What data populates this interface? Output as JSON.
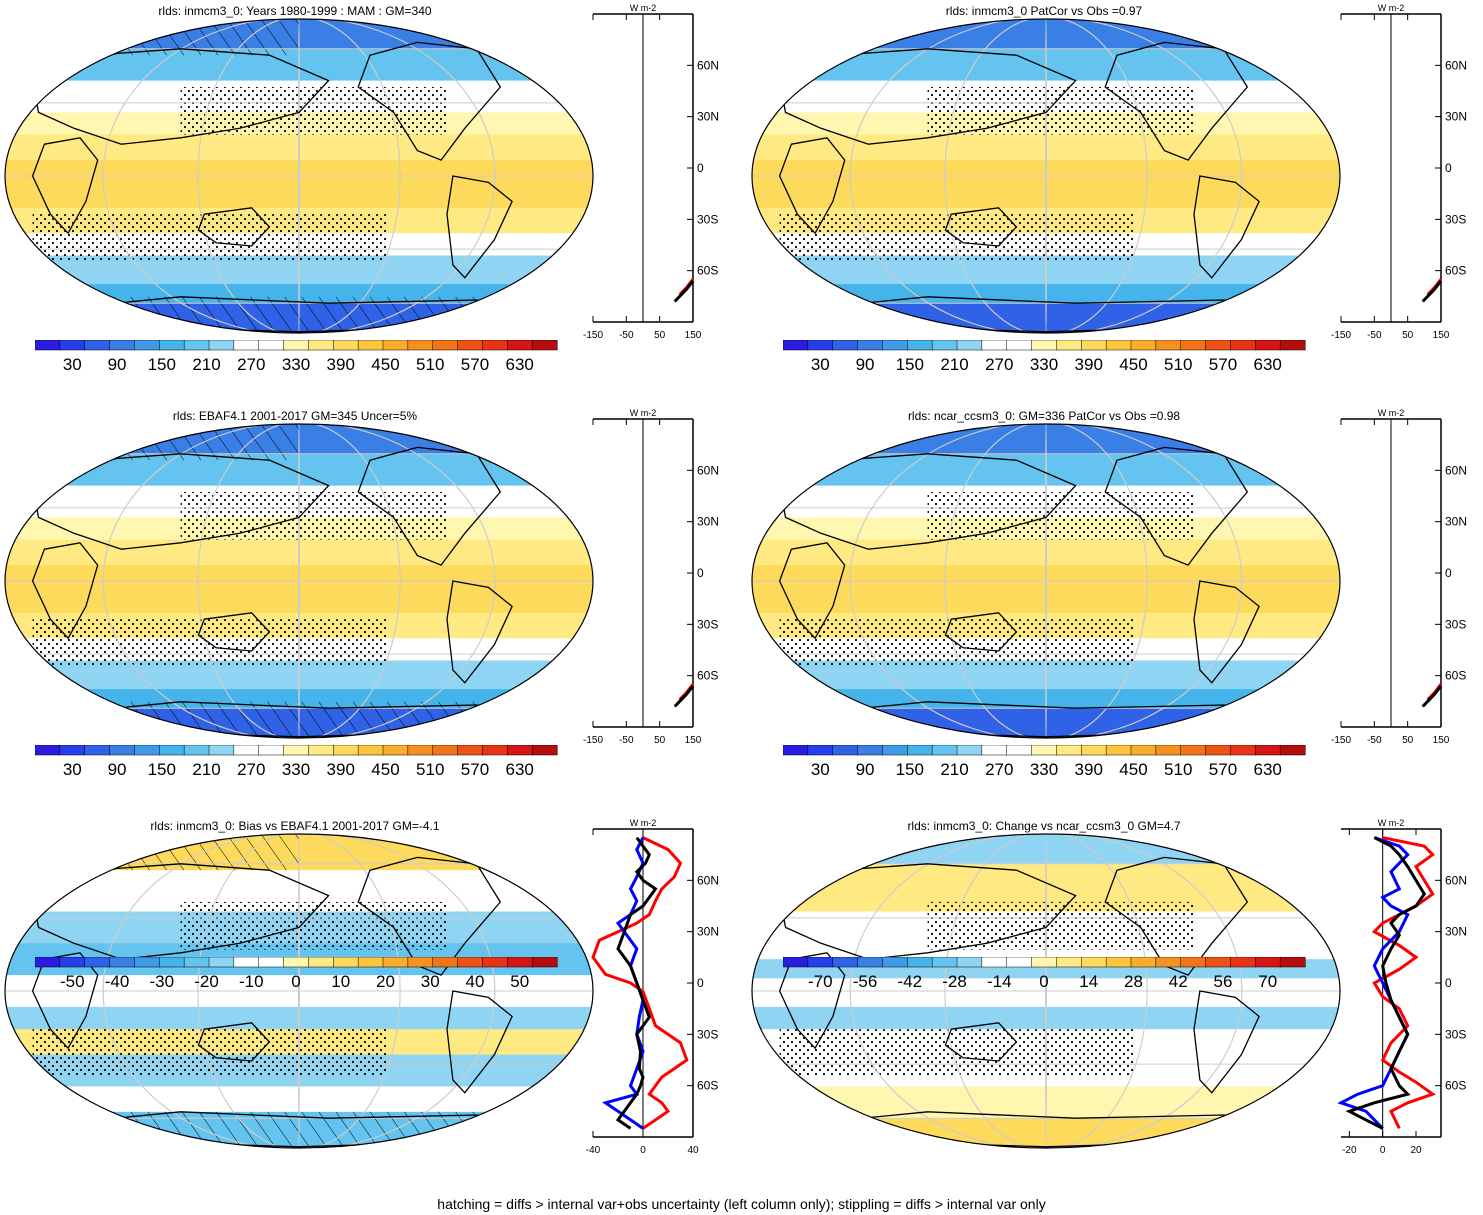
{
  "footer": "hatching = diffs > internal var+obs uncertainty (left column only); stippling = diffs > internal var only",
  "colors": {
    "abs_scale": [
      "#2b1de0",
      "#2540e8",
      "#2f62e6",
      "#3a7fe6",
      "#3f9be8",
      "#45b4ea",
      "#64c4ef",
      "#8fd4f3",
      "#ffffff",
      "#ffffff",
      "#fff6b0",
      "#fee983",
      "#fdda5c",
      "#fcc53c",
      "#f9ad2a",
      "#f6911f",
      "#f27419",
      "#ee5316",
      "#e83416",
      "#d61616",
      "#b50d0d"
    ],
    "diff_scale": [
      "#2b1de0",
      "#2540e8",
      "#2f62e6",
      "#3a7fe6",
      "#3f9be8",
      "#45b4ea",
      "#64c4ef",
      "#8fd4f3",
      "#ffffff",
      "#ffffff",
      "#fff6b0",
      "#fee983",
      "#fdda5c",
      "#fcc53c",
      "#f9ad2a",
      "#f6911f",
      "#f27419",
      "#ee5316",
      "#e83416",
      "#d61616",
      "#b50d0d"
    ]
  },
  "chart_data": [
    {
      "type": "heatmap",
      "id": "p1",
      "title": "rlds: inmcm3_0: Years 1980-1999 : MAM : GM=340",
      "colorbar_ticks": [
        "30",
        "90",
        "150",
        "210",
        "270",
        "330",
        "390",
        "450",
        "510",
        "570",
        "630"
      ],
      "zonal_xticks": [
        "-150",
        "-50",
        "50",
        "150"
      ],
      "zonal_xlim": [
        -150,
        150
      ],
      "zonal_unit": "W m-2",
      "lat_ticks": [
        "60N",
        "30N",
        "0",
        "30S",
        "60S"
      ],
      "zonal_series": [
        {
          "color": "#ff0000",
          "x": [
            150,
            130,
            110
          ],
          "y": [
            -65,
            -70,
            -74
          ]
        },
        {
          "color": "#000000",
          "x": [
            150,
            130,
            110,
            95
          ],
          "y": [
            -66,
            -71,
            -75,
            -78
          ]
        }
      ]
    },
    {
      "type": "heatmap",
      "id": "p2",
      "title": "rlds: inmcm3_0 PatCor vs Obs =0.97",
      "colorbar_ticks": [
        "30",
        "90",
        "150",
        "210",
        "270",
        "330",
        "390",
        "450",
        "510",
        "570",
        "630"
      ],
      "zonal_xticks": [
        "-150",
        "-50",
        "50",
        "150"
      ],
      "zonal_xlim": [
        -150,
        150
      ],
      "zonal_unit": "W m-2",
      "lat_ticks": [
        "60N",
        "30N",
        "0",
        "30S",
        "60S"
      ],
      "zonal_series": [
        {
          "color": "#ff0000",
          "x": [
            150,
            130,
            110
          ],
          "y": [
            -65,
            -70,
            -74
          ]
        },
        {
          "color": "#000000",
          "x": [
            150,
            130,
            110,
            95
          ],
          "y": [
            -66,
            -71,
            -75,
            -78
          ]
        }
      ]
    },
    {
      "type": "heatmap",
      "id": "p3",
      "title": "rlds: EBAF4.1 2001-2017 GM=345 Uncer=5%",
      "colorbar_ticks": [
        "30",
        "90",
        "150",
        "210",
        "270",
        "330",
        "390",
        "450",
        "510",
        "570",
        "630"
      ],
      "zonal_xticks": [
        "-150",
        "-50",
        "50",
        "150"
      ],
      "zonal_xlim": [
        -150,
        150
      ],
      "zonal_unit": "W m-2",
      "lat_ticks": [
        "60N",
        "30N",
        "0",
        "30S",
        "60S"
      ],
      "zonal_series": [
        {
          "color": "#ff0000",
          "x": [
            150,
            130,
            110
          ],
          "y": [
            -65,
            -70,
            -74
          ]
        },
        {
          "color": "#000000",
          "x": [
            150,
            130,
            110,
            95
          ],
          "y": [
            -66,
            -71,
            -75,
            -78
          ]
        }
      ]
    },
    {
      "type": "heatmap",
      "id": "p4",
      "title": "rlds: ncar_ccsm3_0: GM=336 PatCor vs Obs =0.98",
      "colorbar_ticks": [
        "30",
        "90",
        "150",
        "210",
        "270",
        "330",
        "390",
        "450",
        "510",
        "570",
        "630"
      ],
      "zonal_xticks": [
        "-150",
        "-50",
        "50",
        "150"
      ],
      "zonal_xlim": [
        -150,
        150
      ],
      "zonal_unit": "W m-2",
      "lat_ticks": [
        "60N",
        "30N",
        "0",
        "30S",
        "60S"
      ],
      "zonal_series": [
        {
          "color": "#ff0000",
          "x": [
            150,
            130,
            110
          ],
          "y": [
            -65,
            -70,
            -74
          ]
        },
        {
          "color": "#000000",
          "x": [
            150,
            130,
            110,
            95
          ],
          "y": [
            -66,
            -71,
            -75,
            -78
          ]
        }
      ]
    },
    {
      "type": "heatmap",
      "id": "p5",
      "title": "rlds: inmcm3_0: Bias vs EBAF4.1 2001-2017 GM=-4.1",
      "colorbar_ticks": [
        "-50",
        "-40",
        "-30",
        "-20",
        "-10",
        "0",
        "10",
        "20",
        "30",
        "40",
        "50"
      ],
      "zonal_xticks": [
        "-40",
        "0",
        "40"
      ],
      "zonal_xlim": [
        -40,
        40
      ],
      "zonal_unit": "W m-2",
      "lat_ticks": [
        "60N",
        "30N",
        "0",
        "30S",
        "60S"
      ],
      "zonal_series": [
        {
          "color": "#ff0000",
          "x": [
            0,
            20,
            30,
            25,
            15,
            10,
            5,
            -5,
            -20,
            -35,
            -40,
            -30,
            -10,
            0,
            5,
            10,
            20,
            30,
            35,
            25,
            15,
            10,
            5,
            15,
            20,
            10,
            0
          ],
          "y": [
            85,
            78,
            70,
            62,
            55,
            48,
            40,
            35,
            30,
            25,
            15,
            5,
            0,
            -5,
            -15,
            -25,
            -30,
            -35,
            -45,
            -50,
            -55,
            -60,
            -65,
            -70,
            -75,
            -80,
            -85
          ]
        },
        {
          "color": "#0000ff",
          "x": [
            0,
            -5,
            0,
            -5,
            -10,
            -5,
            -10,
            -20,
            -15,
            -5,
            -10,
            -5,
            0,
            -3,
            -5,
            0,
            -5,
            -10,
            -5,
            -30,
            -20,
            0
          ],
          "y": [
            85,
            78,
            70,
            62,
            55,
            48,
            40,
            35,
            30,
            20,
            10,
            0,
            -10,
            -20,
            -30,
            -40,
            -50,
            -60,
            -65,
            -70,
            -75,
            -85
          ]
        },
        {
          "color": "#000000",
          "x": [
            -5,
            0,
            5,
            2,
            -5,
            0,
            10,
            5,
            0,
            -10,
            -15,
            -20,
            -10,
            -5,
            0,
            5,
            -5,
            -2,
            -3,
            0,
            -2,
            -5,
            -10,
            -15,
            -20,
            -10
          ],
          "y": [
            85,
            80,
            75,
            70,
            65,
            60,
            55,
            50,
            45,
            40,
            30,
            20,
            10,
            0,
            -10,
            -20,
            -30,
            -40,
            -50,
            -55,
            -60,
            -65,
            -70,
            -75,
            -80,
            -85
          ]
        }
      ]
    },
    {
      "type": "heatmap",
      "id": "p6",
      "title": "rlds: inmcm3_0: Change vs ncar_ccsm3_0 GM=4.7",
      "colorbar_ticks": [
        "-70",
        "-56",
        "-42",
        "-28",
        "-14",
        "0",
        "14",
        "28",
        "42",
        "56",
        "70"
      ],
      "zonal_xticks": [
        "-20",
        "0",
        "20"
      ],
      "zonal_xlim": [
        -25,
        35
      ],
      "zonal_unit": "W m-2",
      "lat_ticks": [
        "60N",
        "30N",
        "0",
        "30S",
        "60S"
      ],
      "zonal_series": [
        {
          "color": "#ff0000",
          "x": [
            0,
            25,
            30,
            20,
            25,
            30,
            20,
            10,
            0,
            -5,
            10,
            20,
            10,
            -5,
            0,
            10,
            15,
            5,
            0,
            10,
            20,
            30,
            15,
            5,
            10
          ],
          "y": [
            85,
            80,
            75,
            68,
            60,
            52,
            45,
            40,
            35,
            30,
            22,
            15,
            8,
            0,
            -8,
            -15,
            -25,
            -35,
            -45,
            -52,
            -58,
            -65,
            -70,
            -75,
            -85
          ]
        },
        {
          "color": "#0000ff",
          "x": [
            -5,
            10,
            15,
            10,
            5,
            10,
            0,
            5,
            15,
            10,
            0,
            -5,
            0,
            5,
            10,
            15,
            10,
            5,
            0,
            -15,
            -25,
            -10,
            0
          ],
          "y": [
            85,
            80,
            75,
            70,
            65,
            55,
            50,
            45,
            40,
            30,
            20,
            10,
            0,
            -10,
            -20,
            -30,
            -40,
            -50,
            -60,
            -65,
            -70,
            -75,
            -85
          ]
        },
        {
          "color": "#000000",
          "x": [
            -5,
            5,
            10,
            15,
            20,
            25,
            20,
            10,
            5,
            10,
            5,
            0,
            2,
            5,
            10,
            15,
            10,
            5,
            10,
            15,
            -5,
            -20,
            -10,
            0
          ],
          "y": [
            85,
            80,
            75,
            68,
            60,
            52,
            45,
            40,
            35,
            28,
            20,
            10,
            0,
            -10,
            -20,
            -30,
            -40,
            -50,
            -60,
            -65,
            -70,
            -75,
            -80,
            -85
          ]
        }
      ]
    }
  ]
}
